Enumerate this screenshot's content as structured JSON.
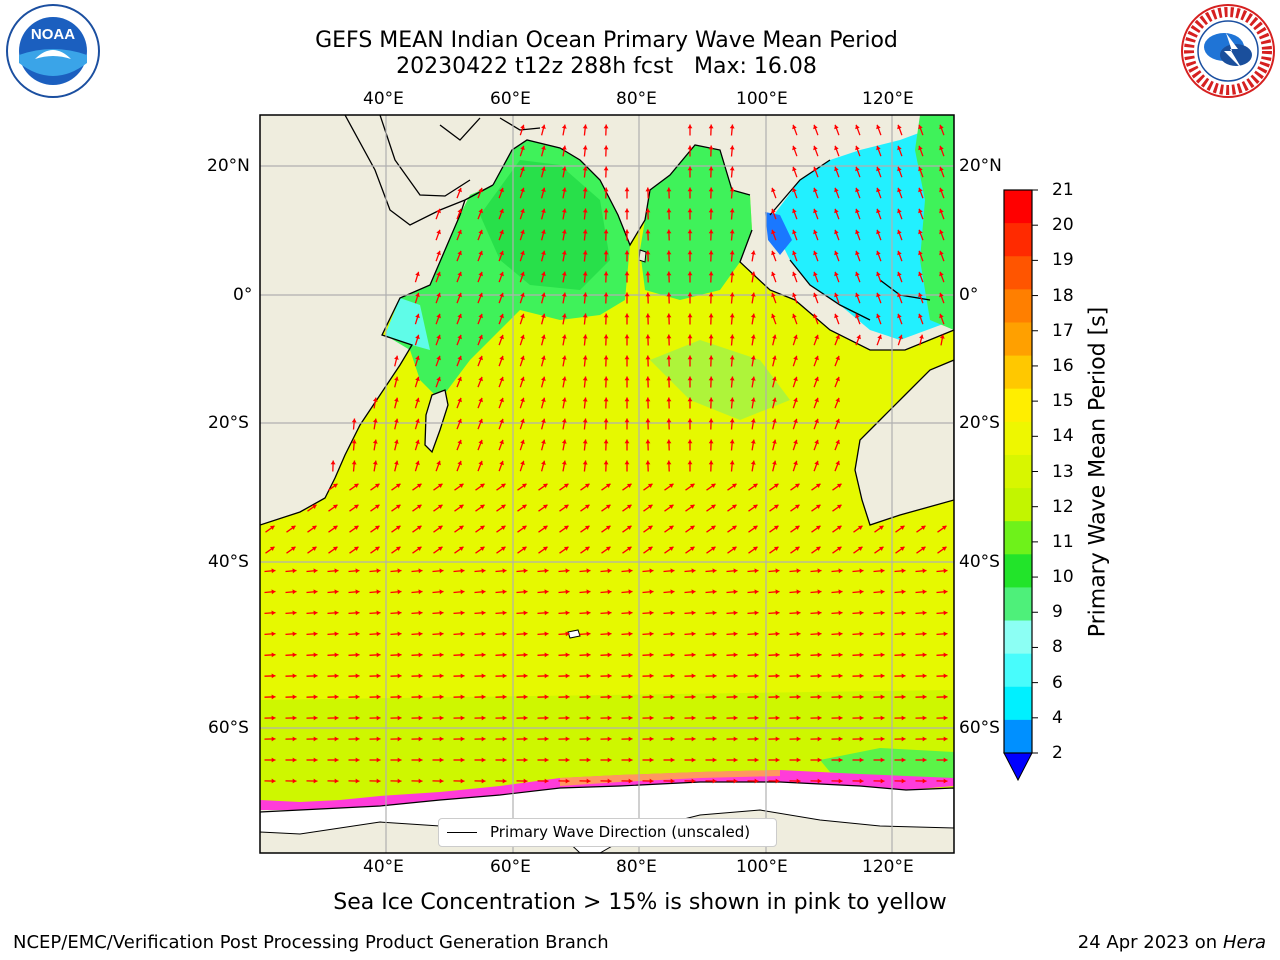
{
  "title": {
    "line1": "GEFS MEAN Indian Ocean Primary Wave Mean Period",
    "line2": "20230422 t12z 288h fcst   Max: 16.08"
  },
  "map": {
    "lon_labels": [
      "40°E",
      "60°E",
      "80°E",
      "100°E",
      "120°E"
    ],
    "lat_labels": [
      "20°N",
      "0°",
      "20°S",
      "40°S",
      "60°S"
    ],
    "land_color": "#efedde",
    "ocean_main_color": "#e6f900",
    "coast_color": "#2cf05c",
    "ice_color": "#ff3cd9"
  },
  "colorbar": {
    "label": "Primary Wave Mean Period [s]",
    "ticks": [
      "21",
      "20",
      "19",
      "18",
      "17",
      "16",
      "15",
      "14",
      "13",
      "12",
      "11",
      "10",
      "9",
      "8",
      "6",
      "4",
      "2"
    ],
    "colors": [
      "#ff0000",
      "#ff2a00",
      "#ff5500",
      "#ff7f00",
      "#ffa000",
      "#ffc800",
      "#ffee00",
      "#eef700",
      "#d8f600",
      "#c2f500",
      "#6ef21a",
      "#22e42a",
      "#4ef07a",
      "#8cfff4",
      "#48fcfc",
      "#00f0ff",
      "#0090ff"
    ],
    "under_color": "#0000ff"
  },
  "legend": {
    "label": "Primary Wave Direction (unscaled)"
  },
  "caption": "Sea Ice Concentration > 15% is shown in pink to yellow",
  "footer": {
    "left": "NCEP/EMC/Verification Post Processing Product Generation Branch",
    "right_prefix": "24 Apr 2023 on ",
    "right_machine": "Hera"
  },
  "logos": {
    "noaa_text": "NOAA",
    "nws_text": "NATIONAL WEATHER SERVICE"
  }
}
